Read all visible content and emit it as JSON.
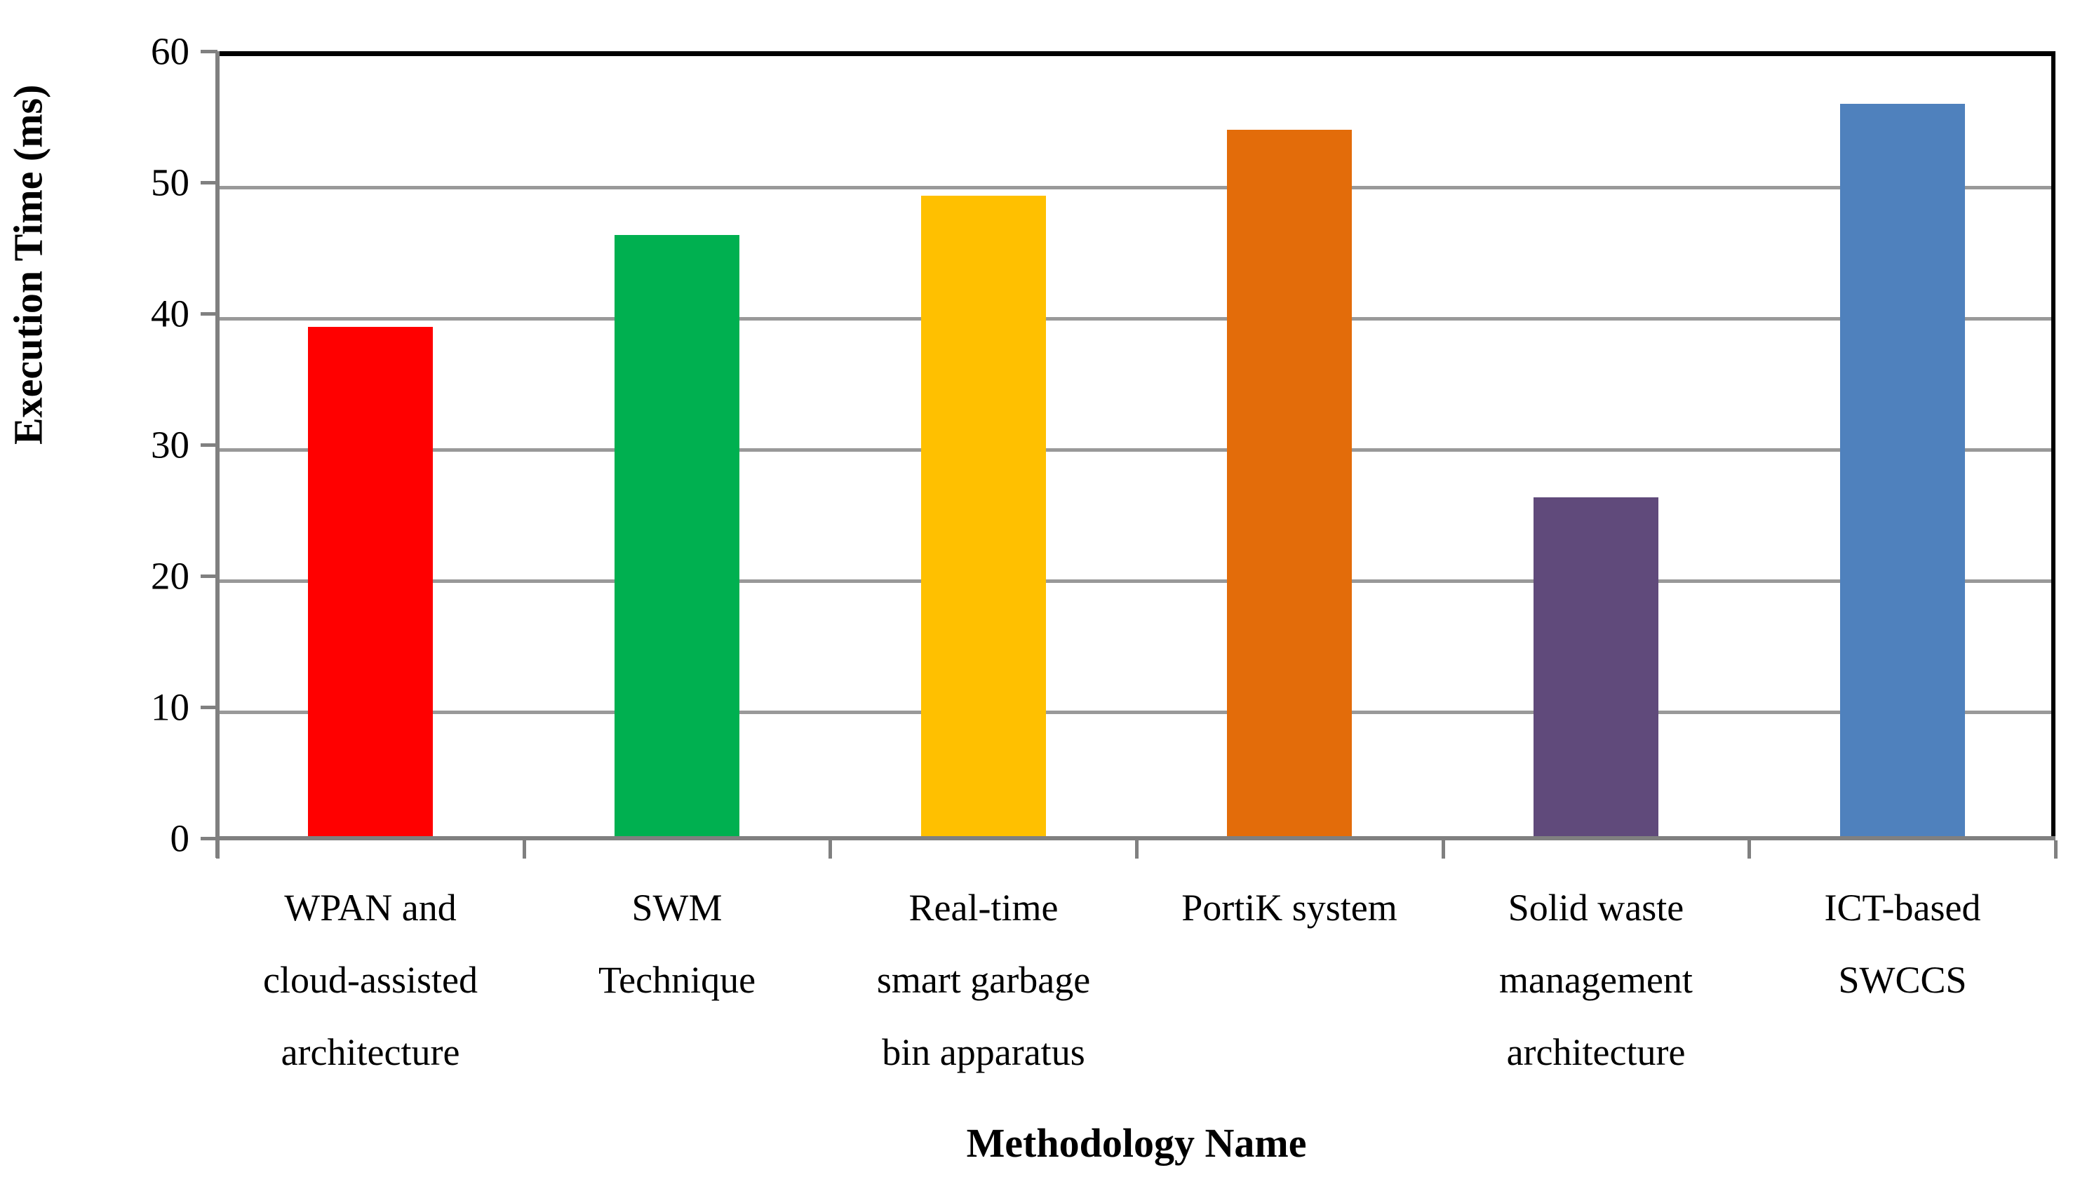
{
  "chart_data": {
    "type": "bar",
    "title": "",
    "xlabel": "Methodology Name",
    "ylabel": "Execution Time (ms)",
    "categories": [
      "WPAN and cloud-assisted architecture",
      "SWM Technique",
      "Real-time smart garbage bin apparatus",
      "PortiK system",
      "Solid waste management architecture",
      "ICT-based SWCCS"
    ],
    "categories_lines": [
      [
        "WPAN and",
        "cloud-assisted",
        "architecture"
      ],
      [
        "SWM",
        "Technique"
      ],
      [
        "Real-time",
        "smart garbage",
        "bin apparatus"
      ],
      [
        "PortiK system"
      ],
      [
        "Solid waste",
        "management",
        "architecture"
      ],
      [
        "ICT-based",
        "SWCCS"
      ]
    ],
    "values": [
      39,
      46,
      49,
      54,
      26,
      56
    ],
    "bar_colors": [
      "#FF0000",
      "#00B050",
      "#FFC000",
      "#E36C0A",
      "#604A7B",
      "#4F81BD"
    ],
    "ylim": [
      0,
      60
    ],
    "yticks": [
      0,
      10,
      20,
      30,
      40,
      50,
      60
    ],
    "grid": "horizontal",
    "legend": "none"
  },
  "colors": {
    "gridline": "#999999",
    "axis_line": "#808080",
    "plot_border": "#000000",
    "text": "#000000",
    "background": "#FFFFFF"
  }
}
